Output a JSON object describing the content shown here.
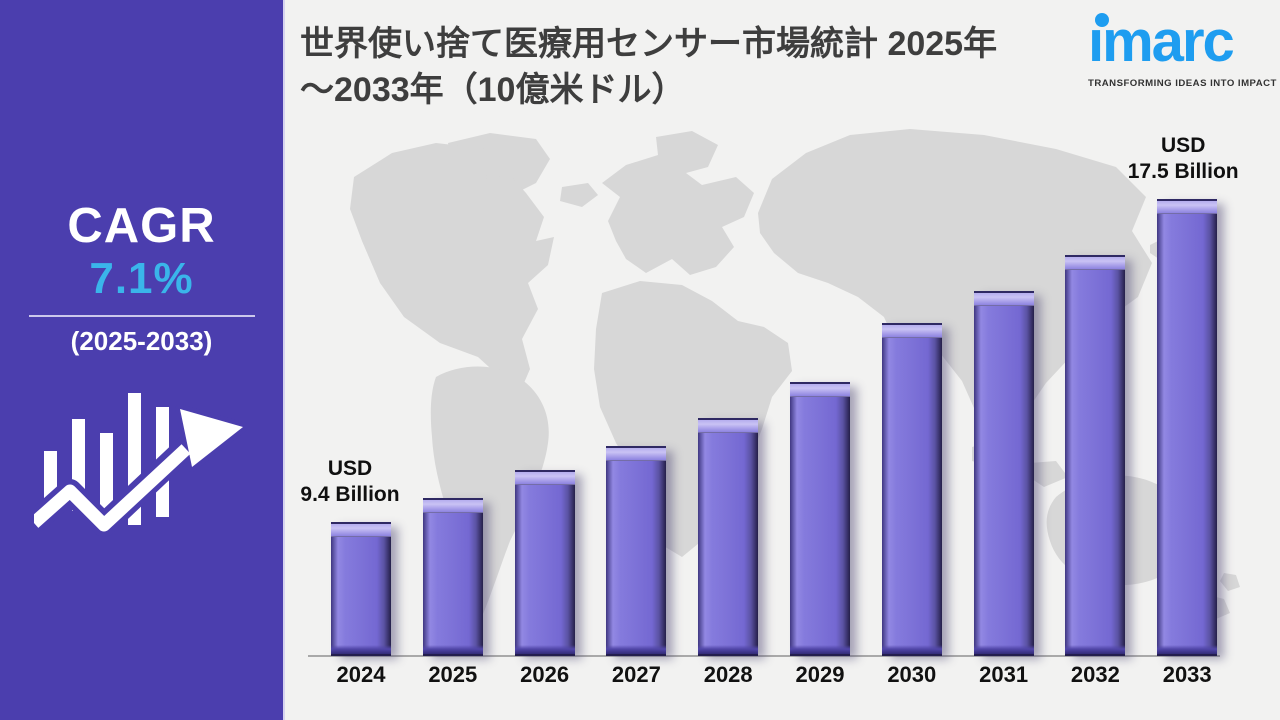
{
  "header": {
    "title_line1": "世界使い捨て医療用センサー市場統計 2025年",
    "title_line2": "～2033年（10億米ドル）"
  },
  "logo": {
    "brand": "imarc",
    "tagline": "TRANSFORMING IDEAS INTO IMPACT",
    "brand_color": "#1e9df0"
  },
  "sidebar": {
    "cagr_label": "CAGR",
    "cagr_value": "7.1%",
    "cagr_period": "(2025-2033)"
  },
  "chart_data": {
    "type": "bar",
    "title": "世界使い捨て医療用センサー市場統計 2025年～2033年（10億米ドル）",
    "unit": "USD Billion",
    "categories": [
      "2024",
      "2025",
      "2026",
      "2027",
      "2028",
      "2029",
      "2030",
      "2031",
      "2032",
      "2033"
    ],
    "values": [
      9.4,
      10.0,
      10.7,
      11.3,
      12.0,
      12.9,
      14.4,
      15.2,
      16.1,
      17.5
    ],
    "labeled_values": {
      "2024": 9.4,
      "2033": 17.5
    },
    "first_bar_label": {
      "line1": "USD",
      "line2": "9.4 Billion"
    },
    "last_bar_label": {
      "line1": "USD",
      "line2": "17.5 Billion"
    },
    "xlabel": "",
    "ylabel": "",
    "legend": "none",
    "gridlines": false,
    "bar_color": "#7e73d8",
    "note": "Only the 2024 and 2033 bars carry data labels; intermediate values are estimated from bar heights. Background is a light world-map watermark."
  },
  "colors": {
    "sidebar_bg": "#4b3eae",
    "cagr_accent": "#3ab5ea",
    "brand_blue": "#1e9df0",
    "bar_fill": "#7e73d8",
    "canvas_bg": "#f2f2f1",
    "map_fill": "#d7d7d7",
    "text_dark": "#111111"
  }
}
